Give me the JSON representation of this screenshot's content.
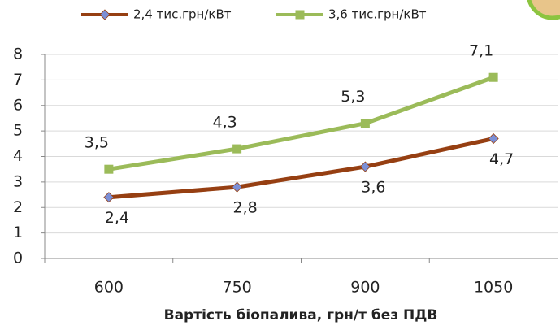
{
  "chart_data": {
    "type": "line",
    "categories": [
      "600",
      "750",
      "900",
      "1050"
    ],
    "x_label": "Вартість біопалива, грн/т без ПДВ",
    "series": [
      {
        "name": "2,4 тис.грн/кВт",
        "color": "#963f12",
        "marker": "diamond",
        "marker_color": "#7b8fd6",
        "values": [
          2.4,
          2.8,
          3.6,
          4.7
        ],
        "value_labels": [
          "2,4",
          "2,8",
          "3,6",
          "4,7"
        ],
        "label_position": "below"
      },
      {
        "name": "3,6 тис.грн/кВт",
        "color": "#9bbb59",
        "marker": "square",
        "marker_color": "#9bbb59",
        "values": [
          3.5,
          4.3,
          5.3,
          7.1
        ],
        "value_labels": [
          "3,5",
          "4,3",
          "5,3",
          "7,1"
        ],
        "label_position": "above"
      }
    ],
    "ylim": [
      0,
      8
    ],
    "yticks": [
      0,
      1,
      2,
      3,
      4,
      5,
      6,
      7,
      8
    ],
    "grid": true
  }
}
